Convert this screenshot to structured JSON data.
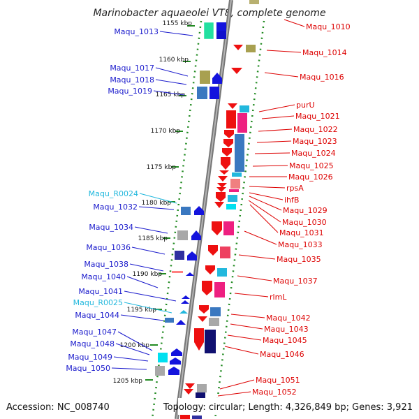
{
  "title": "Marinobacter aquaeolei VT8, complete genome",
  "footer": {
    "accession": "Accession: NC_008740",
    "summary": "Topology: circular; Length: 4,326,849 bp; Genes: 3,921"
  },
  "colors": {
    "left_label": "#1a1acc",
    "right_label": "#dd0000",
    "rna_label": "#22b8dd",
    "backbone": "#8a8a8a",
    "tick": "#228b22"
  },
  "scale_marks": [
    "1155 kbp",
    "1160 kbp",
    "1165 kbp",
    "1170 kbp",
    "1175 kbp",
    "1180 kbp",
    "1185 kbp",
    "1190 kbp",
    "1195 kbp",
    "1200 kbp",
    "1205 kbp"
  ],
  "left_labels": [
    {
      "text": "Maqu_1013",
      "type": "gene"
    },
    {
      "text": "Maqu_1017",
      "type": "gene"
    },
    {
      "text": "Maqu_1018",
      "type": "gene"
    },
    {
      "text": "Maqu_1019",
      "type": "gene"
    },
    {
      "text": "Maqu_R0024",
      "type": "rna"
    },
    {
      "text": "Maqu_1032",
      "type": "gene"
    },
    {
      "text": "Maqu_1034",
      "type": "gene"
    },
    {
      "text": "Maqu_1036",
      "type": "gene"
    },
    {
      "text": "Maqu_1038",
      "type": "gene"
    },
    {
      "text": "Maqu_1040",
      "type": "gene"
    },
    {
      "text": "Maqu_1041",
      "type": "gene"
    },
    {
      "text": "Maqu_R0025",
      "type": "rna"
    },
    {
      "text": "Maqu_1044",
      "type": "gene"
    },
    {
      "text": "Maqu_1047",
      "type": "gene"
    },
    {
      "text": "Maqu_1048",
      "type": "gene"
    },
    {
      "text": "Maqu_1049",
      "type": "gene"
    },
    {
      "text": "Maqu_1050",
      "type": "gene"
    }
  ],
  "right_labels": [
    {
      "text": "Maqu_1010"
    },
    {
      "text": "Maqu_1014"
    },
    {
      "text": "Maqu_1016"
    },
    {
      "text": "purU"
    },
    {
      "text": "Maqu_1021"
    },
    {
      "text": "Maqu_1022"
    },
    {
      "text": "Maqu_1023"
    },
    {
      "text": "Maqu_1024"
    },
    {
      "text": "Maqu_1025"
    },
    {
      "text": "Maqu_1026"
    },
    {
      "text": "rpsA"
    },
    {
      "text": "ihfB"
    },
    {
      "text": "Maqu_1029"
    },
    {
      "text": "Maqu_1030"
    },
    {
      "text": "Maqu_1031"
    },
    {
      "text": "Maqu_1033"
    },
    {
      "text": "Maqu_1035"
    },
    {
      "text": "Maqu_1037"
    },
    {
      "text": "rlmL"
    },
    {
      "text": "Maqu_1042"
    },
    {
      "text": "Maqu_1043"
    },
    {
      "text": "Maqu_1045"
    },
    {
      "text": "Maqu_1046"
    },
    {
      "text": "Maqu_1051"
    },
    {
      "text": "Maqu_1052"
    }
  ]
}
